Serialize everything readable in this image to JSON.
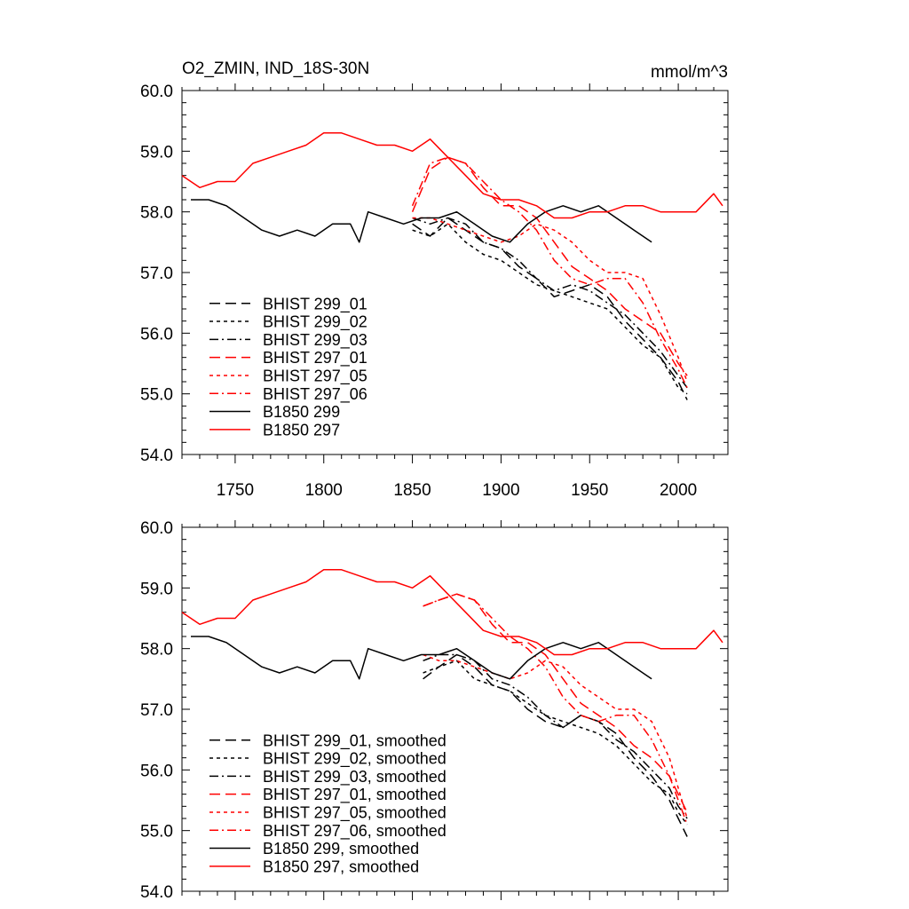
{
  "chart_data": [
    {
      "type": "line",
      "title": "O2_ZMIN, IND_18S-30N",
      "units": "mmol/m^3",
      "xlim": [
        1720,
        2028
      ],
      "ylim": [
        54.0,
        60.0
      ],
      "xticks": [
        1750,
        1800,
        1850,
        1900,
        1950,
        2000
      ],
      "yticks": [
        "54.0",
        "55.0",
        "56.0",
        "57.0",
        "58.0",
        "59.0",
        "60.0"
      ],
      "legend_position": "bottom-left",
      "series": [
        {
          "name": "BHIST 299_01",
          "color": "#000000",
          "dash": "long-dash",
          "x": [
            1850,
            1860,
            1870,
            1880,
            1890,
            1900,
            1910,
            1920,
            1930,
            1940,
            1950,
            1960,
            1970,
            1980,
            1990,
            2000,
            2005
          ],
          "y": [
            57.8,
            57.6,
            57.9,
            57.7,
            57.5,
            57.4,
            57.1,
            56.9,
            56.6,
            56.7,
            56.8,
            56.6,
            56.2,
            55.9,
            55.6,
            55.2,
            54.9
          ]
        },
        {
          "name": "BHIST 299_02",
          "color": "#000000",
          "dash": "short-dash",
          "x": [
            1850,
            1860,
            1870,
            1880,
            1890,
            1900,
            1910,
            1920,
            1930,
            1940,
            1950,
            1960,
            1970,
            1980,
            1990,
            2000,
            2005
          ],
          "y": [
            57.7,
            57.6,
            57.8,
            57.5,
            57.3,
            57.2,
            57.0,
            56.8,
            56.7,
            56.6,
            56.5,
            56.4,
            56.1,
            55.8,
            55.6,
            55.1,
            55.0
          ]
        },
        {
          "name": "BHIST 299_03",
          "color": "#000000",
          "dash": "dash-dot",
          "x": [
            1850,
            1860,
            1870,
            1880,
            1890,
            1900,
            1910,
            1920,
            1930,
            1940,
            1950,
            1960,
            1970,
            1980,
            1990,
            2000,
            2005
          ],
          "y": [
            57.9,
            57.8,
            57.9,
            57.8,
            57.5,
            57.4,
            57.2,
            56.9,
            56.7,
            56.8,
            56.7,
            56.5,
            56.3,
            56.0,
            55.7,
            55.3,
            55.1
          ]
        },
        {
          "name": "BHIST 297_01",
          "color": "#ff0000",
          "dash": "long-dash",
          "x": [
            1850,
            1860,
            1870,
            1880,
            1890,
            1900,
            1910,
            1920,
            1930,
            1940,
            1950,
            1960,
            1970,
            1980,
            1990,
            2000,
            2005
          ],
          "y": [
            58.0,
            58.7,
            58.9,
            58.8,
            58.4,
            58.1,
            58.1,
            57.9,
            57.5,
            57.1,
            56.9,
            56.7,
            56.4,
            56.2,
            56.0,
            55.5,
            55.3
          ]
        },
        {
          "name": "BHIST 297_05",
          "color": "#ff0000",
          "dash": "short-dash",
          "x": [
            1850,
            1860,
            1870,
            1880,
            1890,
            1900,
            1910,
            1920,
            1930,
            1940,
            1950,
            1960,
            1970,
            1980,
            1990,
            2000,
            2005
          ],
          "y": [
            57.9,
            57.9,
            57.8,
            57.7,
            57.6,
            57.5,
            57.6,
            57.8,
            57.7,
            57.5,
            57.2,
            57.0,
            57.0,
            56.9,
            56.3,
            55.6,
            55.2
          ]
        },
        {
          "name": "BHIST 297_06",
          "color": "#ff0000",
          "dash": "dash-dot",
          "x": [
            1850,
            1860,
            1870,
            1880,
            1890,
            1900,
            1910,
            1920,
            1930,
            1940,
            1950,
            1960,
            1970,
            1980,
            1990,
            2000,
            2005
          ],
          "y": [
            58.1,
            58.8,
            58.9,
            58.8,
            58.5,
            58.2,
            58.0,
            57.7,
            57.2,
            56.9,
            56.8,
            56.9,
            56.9,
            56.5,
            55.9,
            55.4,
            55.1
          ]
        },
        {
          "name": "B1850 299",
          "color": "#000000",
          "dash": "solid",
          "x": [
            1725,
            1735,
            1745,
            1755,
            1765,
            1775,
            1785,
            1795,
            1805,
            1815,
            1820,
            1825,
            1835,
            1845,
            1855,
            1865,
            1875,
            1885,
            1895,
            1905,
            1915,
            1925,
            1935,
            1945,
            1955,
            1965,
            1975,
            1985
          ],
          "y": [
            58.2,
            58.2,
            58.1,
            57.9,
            57.7,
            57.6,
            57.7,
            57.6,
            57.8,
            57.8,
            57.5,
            58.0,
            57.9,
            57.8,
            57.9,
            57.9,
            58.0,
            57.8,
            57.6,
            57.5,
            57.8,
            58.0,
            58.1,
            58.0,
            58.1,
            57.9,
            57.7,
            57.5
          ]
        },
        {
          "name": "B1850 297",
          "color": "#ff0000",
          "dash": "solid",
          "x": [
            1720,
            1730,
            1740,
            1750,
            1760,
            1770,
            1780,
            1790,
            1800,
            1810,
            1820,
            1830,
            1840,
            1850,
            1860,
            1870,
            1880,
            1890,
            1900,
            1910,
            1920,
            1930,
            1940,
            1950,
            1960,
            1970,
            1980,
            1990,
            2000,
            2010,
            2020,
            2025
          ],
          "y": [
            58.6,
            58.4,
            58.5,
            58.5,
            58.8,
            58.9,
            59.0,
            59.1,
            59.3,
            59.3,
            59.2,
            59.1,
            59.1,
            59.0,
            59.2,
            58.9,
            58.6,
            58.3,
            58.2,
            58.2,
            58.1,
            57.9,
            57.9,
            58.0,
            58.0,
            58.1,
            58.1,
            58.0,
            58.0,
            58.0,
            58.3,
            58.1
          ]
        }
      ]
    },
    {
      "type": "line",
      "title": "",
      "xlim": [
        1720,
        2028
      ],
      "ylim": [
        54.0,
        60.0
      ],
      "yticks": [
        "54.0",
        "55.0",
        "56.0",
        "57.0",
        "58.0",
        "59.0",
        "60.0"
      ],
      "legend_position": "bottom-left",
      "series": [
        {
          "name": "BHIST 299_01, smoothed",
          "color": "#000000",
          "dash": "long-dash",
          "x": [
            1856,
            1865,
            1875,
            1885,
            1895,
            1905,
            1915,
            1925,
            1935,
            1945,
            1955,
            1965,
            1975,
            1985,
            1995,
            2000,
            2005
          ],
          "y": [
            57.5,
            57.7,
            57.9,
            57.7,
            57.4,
            57.3,
            57.0,
            56.8,
            56.7,
            56.9,
            56.8,
            56.6,
            56.2,
            55.9,
            55.5,
            55.2,
            54.9
          ]
        },
        {
          "name": "BHIST 299_02, smoothed",
          "color": "#000000",
          "dash": "short-dash",
          "x": [
            1856,
            1865,
            1875,
            1885,
            1895,
            1905,
            1915,
            1925,
            1935,
            1945,
            1955,
            1965,
            1975,
            1985,
            1995,
            2000,
            2005
          ],
          "y": [
            57.6,
            57.7,
            57.8,
            57.5,
            57.4,
            57.3,
            57.1,
            56.9,
            56.8,
            56.7,
            56.6,
            56.4,
            56.1,
            55.8,
            55.6,
            55.3,
            55.1
          ]
        },
        {
          "name": "BHIST 299_03, smoothed",
          "color": "#000000",
          "dash": "dash-dot",
          "x": [
            1856,
            1865,
            1875,
            1885,
            1895,
            1905,
            1915,
            1925,
            1935,
            1945,
            1955,
            1965,
            1975,
            1985,
            1995,
            2000,
            2005
          ],
          "y": [
            57.8,
            57.9,
            57.9,
            57.8,
            57.5,
            57.4,
            57.2,
            56.9,
            56.7,
            56.9,
            56.8,
            56.5,
            56.3,
            56.0,
            55.7,
            55.4,
            55.2
          ]
        },
        {
          "name": "BHIST 297_01, smoothed",
          "color": "#ff0000",
          "dash": "long-dash",
          "x": [
            1856,
            1865,
            1875,
            1885,
            1895,
            1905,
            1915,
            1925,
            1935,
            1945,
            1955,
            1965,
            1975,
            1985,
            1995,
            2000,
            2005
          ],
          "y": [
            58.7,
            58.8,
            58.9,
            58.8,
            58.4,
            58.1,
            58.1,
            57.9,
            57.5,
            57.1,
            56.9,
            56.7,
            56.4,
            56.2,
            55.9,
            55.6,
            55.3
          ]
        },
        {
          "name": "BHIST 297_05, smoothed",
          "color": "#ff0000",
          "dash": "short-dash",
          "x": [
            1856,
            1865,
            1875,
            1885,
            1895,
            1905,
            1915,
            1925,
            1935,
            1945,
            1955,
            1965,
            1975,
            1985,
            1995,
            2000,
            2005
          ],
          "y": [
            57.9,
            57.8,
            57.8,
            57.7,
            57.6,
            57.5,
            57.6,
            57.8,
            57.7,
            57.4,
            57.2,
            57.0,
            57.0,
            56.8,
            56.2,
            55.7,
            55.2
          ]
        },
        {
          "name": "BHIST 297_06, smoothed",
          "color": "#ff0000",
          "dash": "dash-dot",
          "x": [
            1856,
            1865,
            1875,
            1885,
            1895,
            1905,
            1915,
            1925,
            1935,
            1945,
            1955,
            1965,
            1975,
            1985,
            1995,
            2000,
            2005
          ],
          "y": [
            58.7,
            58.8,
            58.9,
            58.8,
            58.5,
            58.2,
            58.0,
            57.7,
            57.2,
            56.9,
            56.8,
            56.9,
            56.9,
            56.5,
            55.9,
            55.5,
            55.1
          ]
        },
        {
          "name": "B1850 299, smoothed",
          "color": "#000000",
          "dash": "solid",
          "x": [
            1725,
            1735,
            1745,
            1755,
            1765,
            1775,
            1785,
            1795,
            1805,
            1815,
            1820,
            1825,
            1835,
            1845,
            1855,
            1865,
            1875,
            1885,
            1895,
            1905,
            1915,
            1925,
            1935,
            1945,
            1955,
            1965,
            1975,
            1985
          ],
          "y": [
            58.2,
            58.2,
            58.1,
            57.9,
            57.7,
            57.6,
            57.7,
            57.6,
            57.8,
            57.8,
            57.5,
            58.0,
            57.9,
            57.8,
            57.9,
            57.9,
            58.0,
            57.8,
            57.6,
            57.5,
            57.8,
            58.0,
            58.1,
            58.0,
            58.1,
            57.9,
            57.7,
            57.5
          ]
        },
        {
          "name": "B1850 297, smoothed",
          "color": "#ff0000",
          "dash": "solid",
          "x": [
            1720,
            1730,
            1740,
            1750,
            1760,
            1770,
            1780,
            1790,
            1800,
            1810,
            1820,
            1830,
            1840,
            1850,
            1860,
            1870,
            1880,
            1890,
            1900,
            1910,
            1920,
            1930,
            1940,
            1950,
            1960,
            1970,
            1980,
            1990,
            2000,
            2010,
            2020,
            2025
          ],
          "y": [
            58.6,
            58.4,
            58.5,
            58.5,
            58.8,
            58.9,
            59.0,
            59.1,
            59.3,
            59.3,
            59.2,
            59.1,
            59.1,
            59.0,
            59.2,
            58.9,
            58.6,
            58.3,
            58.2,
            58.2,
            58.1,
            57.9,
            57.9,
            58.0,
            58.0,
            58.1,
            58.1,
            58.0,
            58.0,
            58.0,
            58.3,
            58.1
          ]
        }
      ]
    }
  ]
}
